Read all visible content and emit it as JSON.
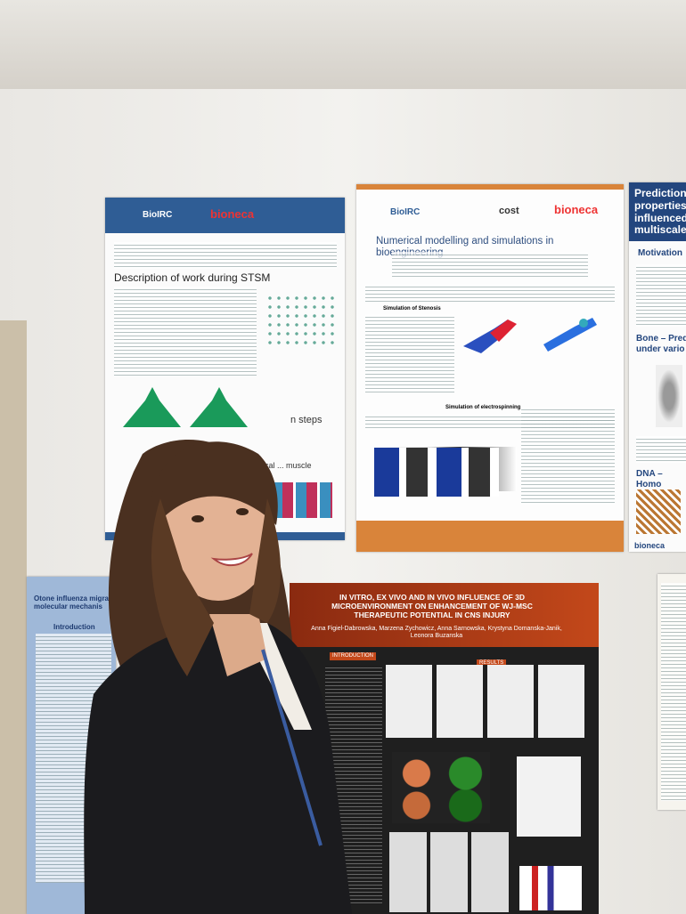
{
  "posters": [
    {
      "logos": [
        "BioIRC",
        "bioneca"
      ],
      "heading": "Description of work during STSM",
      "figure_label": "n steps",
      "subheading": "Numerical ... muscle"
    },
    {
      "logos": [
        "BioIRC",
        "cost",
        "bioneca"
      ],
      "title": "Numerical modelling and simulations in bioengineering",
      "section_1": "Simulation of Stenosis",
      "section_2": "Simulation of electrospinning"
    },
    {
      "title": "Prediction properties influenced multiscale",
      "section_1": "Motivation",
      "section_2": "Bone – Pred under vario",
      "section_3": "DNA – Homo",
      "logo": "bioneca"
    },
    {
      "title": "IN VITRO, EX VIVO AND IN VIVO INFLUENCE OF 3D MICROENVIRONMENT ON ENHANCEMENT OF WJ-MSC THERAPEUTIC POTENTIAL IN CNS INJURY",
      "authors": "Anna Figiel-Dabrowska, Marzena Zychowicz, Anna Sarnowska, Krystyna Domanska-Janik, Leonora Buzanska",
      "section_1": "INTRODUCTION",
      "section_2": "RESULTS"
    },
    {
      "title": "Otone influenza migra molecular mechanis",
      "section_1": "Introduction"
    }
  ]
}
